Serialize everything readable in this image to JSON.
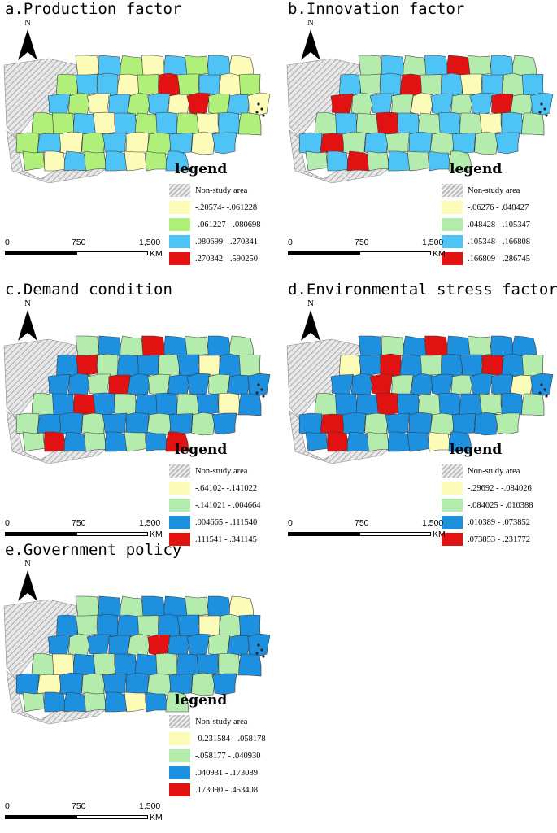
{
  "colors": {
    "non_study": "#c8c8c8",
    "hatch_line": "#a9a9a9",
    "class1": "#fdfbb8",
    "class2_a": "#b0f07a",
    "class2": "#b4ecae",
    "class3_a": "#4ec3f5",
    "class3": "#1e90e0",
    "class4": "#e31212",
    "outline": "#3a3a3a"
  },
  "north_label": "N",
  "scale": {
    "labels": [
      "0",
      "750",
      "1,500"
    ],
    "unit": "KM"
  },
  "panels": [
    {
      "title": "a.Production factor",
      "legend_title": "legend",
      "legend": [
        {
          "label": "Non-study area",
          "color_key": "non_study"
        },
        {
          "label": "-.20574- -.061228",
          "color_key": "class1"
        },
        {
          "label": "-.061227 - .080698",
          "color_key": "class2_a"
        },
        {
          "label": ".080699 - .270341",
          "color_key": "class3_a"
        },
        {
          "label": ".270342 - .590250",
          "color_key": "class4"
        }
      ]
    },
    {
      "title": "b.Innovation factor",
      "legend_title": "legend",
      "legend": [
        {
          "label": "Non-study area",
          "color_key": "non_study"
        },
        {
          "label": "-.06276 - .048427",
          "color_key": "class1"
        },
        {
          "label": ".048428 - .105347",
          "color_key": "class2"
        },
        {
          "label": ".105348 - .166808",
          "color_key": "class3_a"
        },
        {
          "label": ".166809 - .286745",
          "color_key": "class4"
        }
      ]
    },
    {
      "title": "c.Demand condition",
      "legend_title": "legend",
      "legend": [
        {
          "label": "Non-study area",
          "color_key": "non_study"
        },
        {
          "label": "-.64102- -.141022",
          "color_key": "class1"
        },
        {
          "label": "-.141021 - .004664",
          "color_key": "class2"
        },
        {
          "label": ".004665 - .111540",
          "color_key": "class3"
        },
        {
          "label": ".111541 - .341145",
          "color_key": "class4"
        }
      ]
    },
    {
      "title": "d.Environmental stress factor",
      "legend_title": "legend",
      "legend": [
        {
          "label": "Non-study area",
          "color_key": "non_study"
        },
        {
          "label": "-.29692 - -.084026",
          "color_key": "class1"
        },
        {
          "label": "-.084025 - .010388",
          "color_key": "class2"
        },
        {
          "label": ".010389 - .073852",
          "color_key": "class3"
        },
        {
          "label": ".073853 - .231772",
          "color_key": "class4"
        }
      ]
    },
    {
      "title": "e.Government policy",
      "legend_title": "legend",
      "legend": [
        {
          "label": "Non-study area",
          "color_key": "non_study"
        },
        {
          "label": "-0.231584- -.058178",
          "color_key": "class1"
        },
        {
          "label": "-.058177 - .040930",
          "color_key": "class2"
        },
        {
          "label": ".040931 - .173089",
          "color_key": "class3"
        },
        {
          "label": ".173090 - .453408",
          "color_key": "class4"
        }
      ]
    }
  ]
}
